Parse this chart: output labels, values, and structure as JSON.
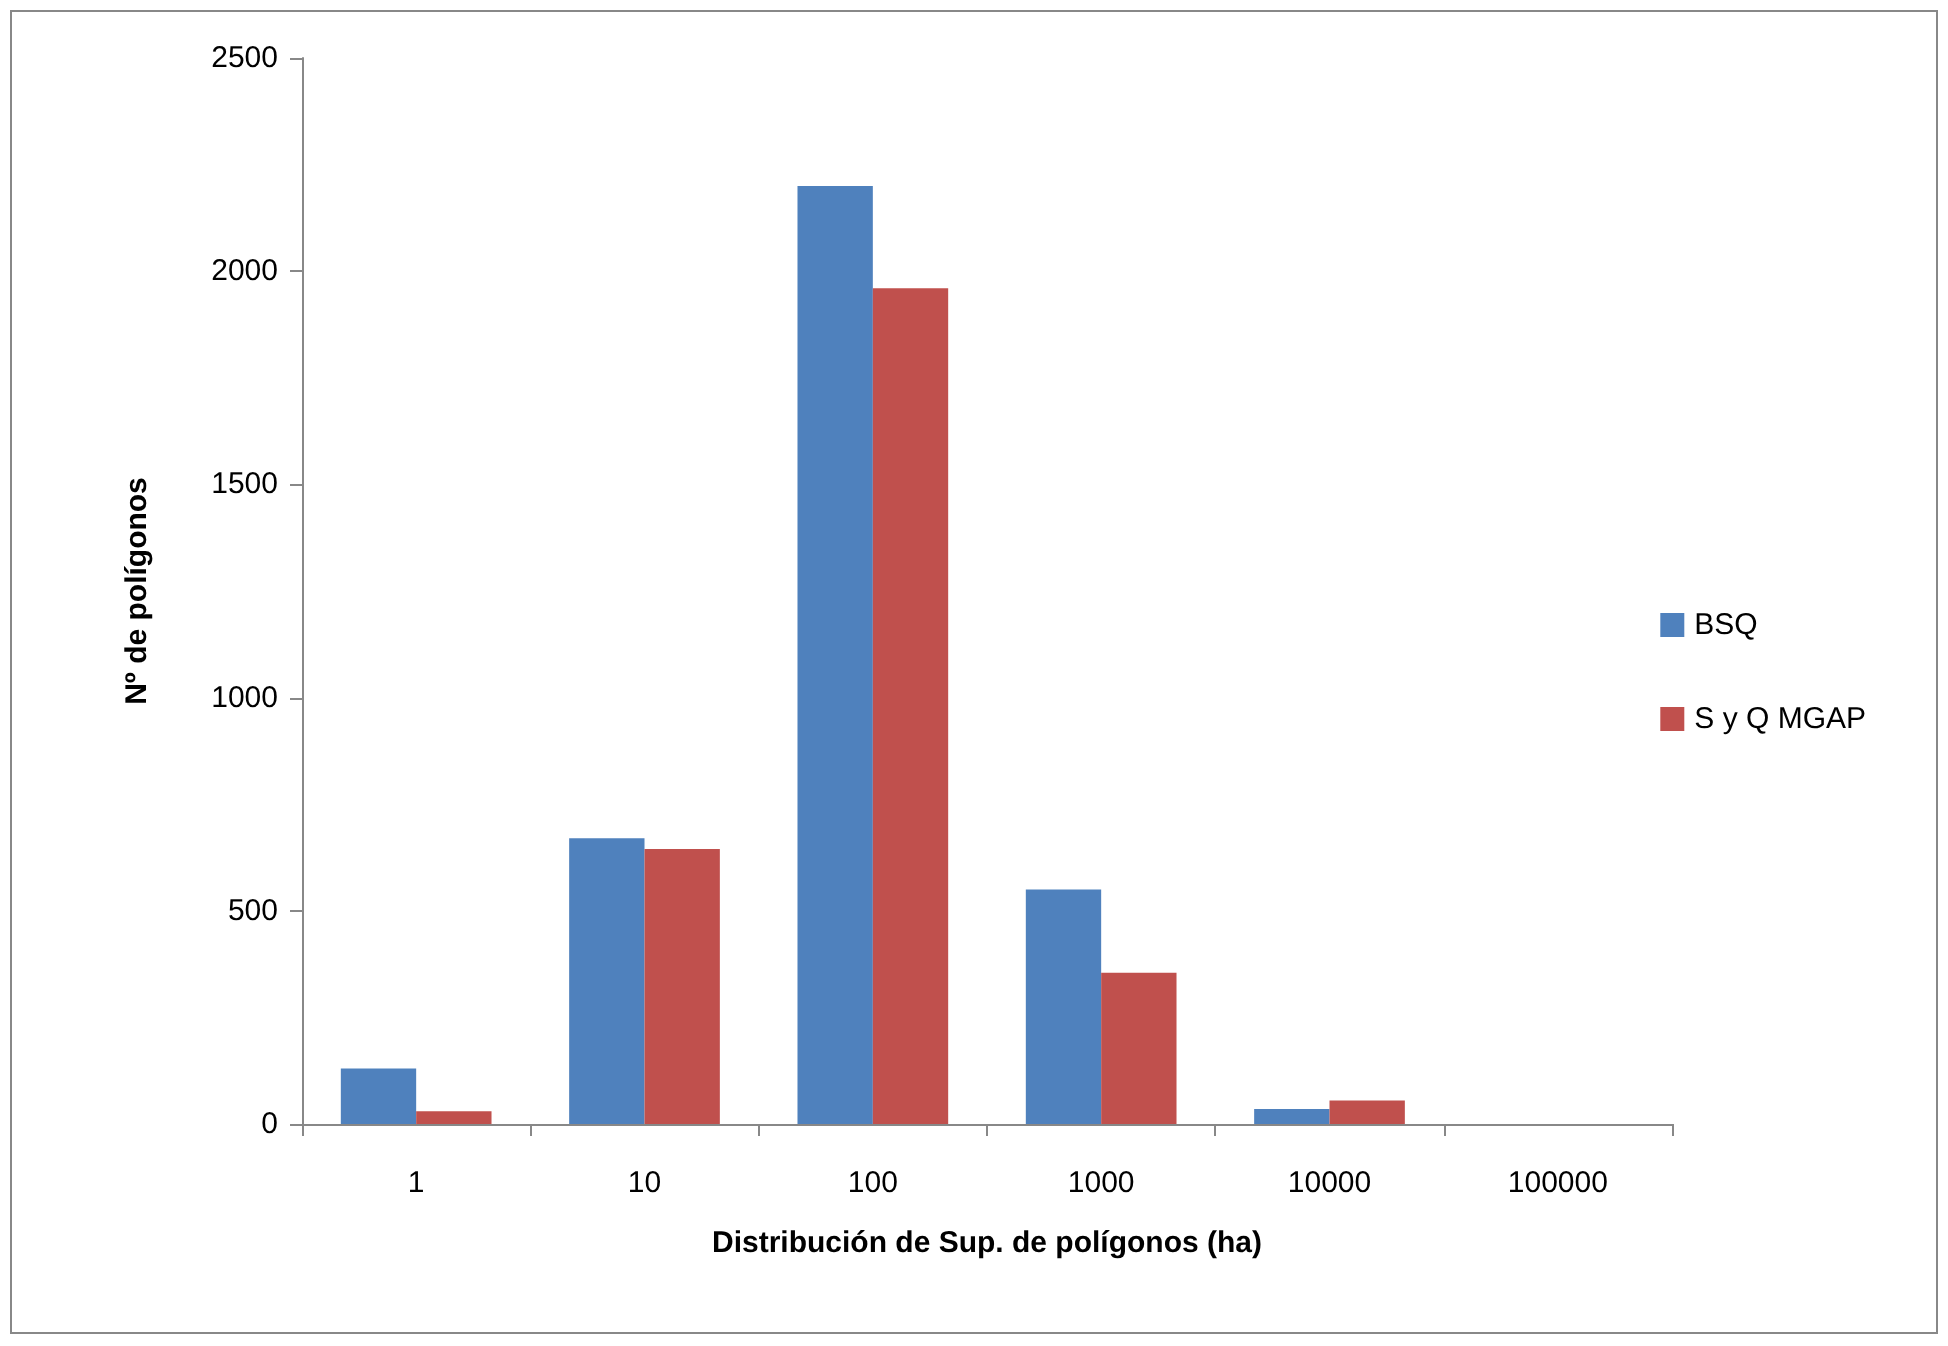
{
  "chart_data": {
    "type": "bar",
    "xlabel": "Distribución de Sup. de polígonos (ha)",
    "ylabel": "Nº de polígonos",
    "categories": [
      "1",
      "10",
      "100",
      "1000",
      "10000",
      "100000"
    ],
    "series": [
      {
        "name": "BSQ",
        "color": "#4f81bd",
        "values": [
          130,
          670,
          2200,
          550,
          35,
          0
        ]
      },
      {
        "name": "S y Q MGAP",
        "color": "#c0504d",
        "values": [
          30,
          645,
          1960,
          355,
          55,
          0
        ]
      }
    ],
    "ylim": [
      0,
      2500
    ],
    "yticks": [
      0,
      500,
      1000,
      1500,
      2000,
      2500
    ],
    "grid": false,
    "legend": "right"
  }
}
